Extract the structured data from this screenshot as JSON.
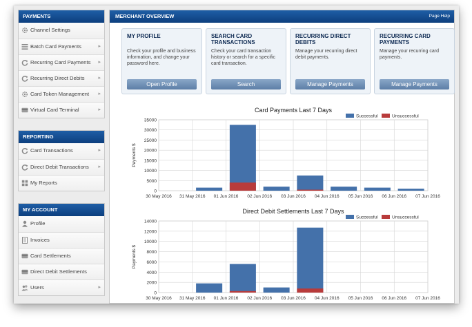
{
  "sidebar": {
    "payments": {
      "title": "PAYMENTS",
      "items": [
        {
          "label": "Channel Settings",
          "icon": "gear-icon",
          "arrow": false
        },
        {
          "label": "Batch Card Payments",
          "icon": "list-icon",
          "arrow": true
        },
        {
          "label": "Recurring Card Payments",
          "icon": "refresh-icon",
          "arrow": true
        },
        {
          "label": "Recurring Direct Debits",
          "icon": "refresh-icon",
          "arrow": true
        },
        {
          "label": "Card Token Management",
          "icon": "gear-icon",
          "arrow": true
        },
        {
          "label": "Virtual Card Terminal",
          "icon": "card-icon",
          "arrow": true
        }
      ]
    },
    "reporting": {
      "title": "REPORTING",
      "items": [
        {
          "label": "Card Transactions",
          "icon": "refresh-icon",
          "arrow": true
        },
        {
          "label": "Direct Debit Transactions",
          "icon": "refresh-icon",
          "arrow": true
        },
        {
          "label": "My Reports",
          "icon": "grid-icon",
          "arrow": false
        }
      ]
    },
    "account": {
      "title": "MY ACCOUNT",
      "items": [
        {
          "label": "Profile",
          "icon": "user-icon",
          "arrow": false
        },
        {
          "label": "Invoices",
          "icon": "document-icon",
          "arrow": false
        },
        {
          "label": "Card Settlements",
          "icon": "card-icon",
          "arrow": false
        },
        {
          "label": "Direct Debit Settlements",
          "icon": "card-icon",
          "arrow": false
        },
        {
          "label": "Users",
          "icon": "users-icon",
          "arrow": true
        }
      ]
    }
  },
  "main": {
    "title": "MERCHANT OVERVIEW",
    "help": "Page Help",
    "cards": [
      {
        "title": "MY PROFILE",
        "desc": "Check your profile and business information, and change your password here.",
        "button": "Open Profile"
      },
      {
        "title": "SEARCH CARD TRANSACTIONS",
        "desc": "Check your card transaction history or search for a specific card transaction.",
        "button": "Search"
      },
      {
        "title": "RECURRING DIRECT DEBITS",
        "desc": "Manage your recurring direct debit payments.",
        "button": "Manage Payments"
      },
      {
        "title": "RECURRING CARD PAYMENTS",
        "desc": "Manage your recurring card payments.",
        "button": "Manage Payments"
      }
    ]
  },
  "colors": {
    "successful": "#4471aa",
    "unsuccessful": "#b83b3b",
    "header": "#154b8d"
  },
  "chart_data": [
    {
      "type": "bar",
      "title": "Card Payments Last 7 Days",
      "ylabel": "Payments $",
      "xlabel": "",
      "ylim": [
        0,
        35000
      ],
      "yticks": [
        0,
        5000,
        10000,
        15000,
        20000,
        25000,
        30000,
        35000
      ],
      "categories": [
        "30 May 2016",
        "31 May 2016",
        "01 Jun 2016",
        "02 Jun 2016",
        "03 Jun 2016",
        "04 Jun 2016",
        "05 Jun 2016",
        "06 Jun 2016",
        "07 Jun 2016"
      ],
      "series": [
        {
          "name": "Successful",
          "values": [
            0,
            1500,
            32500,
            2000,
            7500,
            2000,
            1500,
            1000,
            0
          ]
        },
        {
          "name": "Unsuccessful",
          "values": [
            0,
            0,
            4000,
            0,
            500,
            0,
            0,
            0,
            0
          ]
        }
      ],
      "legend": "top-right",
      "grid": true
    },
    {
      "type": "bar",
      "title": "Direct Debit Settlements Last 7 Days",
      "ylabel": "Payments $",
      "xlabel": "",
      "ylim": [
        0,
        14000
      ],
      "yticks": [
        0,
        2000,
        4000,
        6000,
        8000,
        10000,
        12000,
        14000
      ],
      "categories": [
        "30 May 2016",
        "31 May 2016",
        "01 Jun 2016",
        "02 Jun 2016",
        "03 Jun 2016",
        "04 Jun 2016",
        "05 Jun 2016",
        "06 Jun 2016",
        "07 Jun 2016"
      ],
      "series": [
        {
          "name": "Successful",
          "values": [
            0,
            1800,
            5600,
            1000,
            12700,
            0,
            0,
            0,
            0
          ]
        },
        {
          "name": "Unsuccessful",
          "values": [
            0,
            0,
            300,
            0,
            800,
            0,
            0,
            0,
            0
          ]
        }
      ],
      "legend": "top-right",
      "grid": true
    }
  ]
}
